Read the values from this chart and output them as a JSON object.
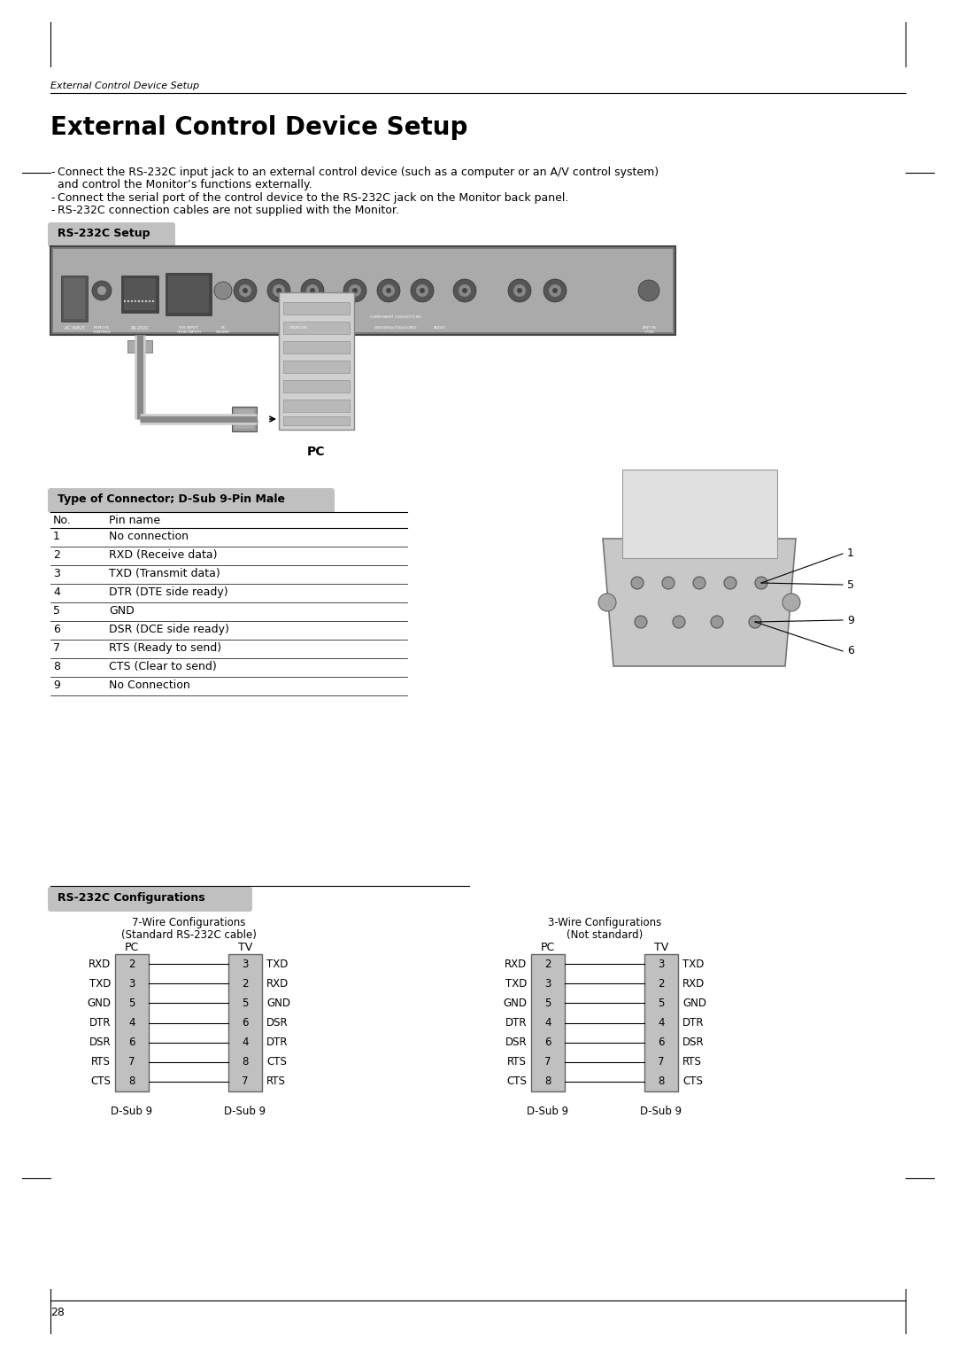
{
  "page_width": 10.8,
  "page_height": 15.25,
  "background_color": "#ffffff",
  "header_italic": "External Control Device Setup",
  "main_title": "External Control Device Setup",
  "bullet1_line1": "Connect the RS-232C input jack to an external control device (such as a computer or an A/V control system)",
  "bullet1_line2": "and control the Monitor’s functions externally.",
  "bullet2": "Connect the serial port of the control device to the RS-232C jack on the Monitor back panel.",
  "bullet3": "RS-232C connection cables are not supplied with the Monitor.",
  "section1_label": "RS-232C Setup",
  "section2_label": "Type of Connector; D-Sub 9-Pin Male",
  "section3_label": "RS-232C Configurations",
  "pin_table_rows": [
    [
      "1",
      "No connection"
    ],
    [
      "2",
      "RXD (Receive data)"
    ],
    [
      "3",
      "TXD (Transmit data)"
    ],
    [
      "4",
      "DTR (DTE side ready)"
    ],
    [
      "5",
      "GND"
    ],
    [
      "6",
      "DSR (DCE side ready)"
    ],
    [
      "7",
      "RTS (Ready to send)"
    ],
    [
      "8",
      "CTS (Clear to send)"
    ],
    [
      "9",
      "No Connection"
    ]
  ],
  "wire7_title1": "7-Wire Configurations",
  "wire7_title2": "(Standard RS-232C cable)",
  "wire3_title1": "3-Wire Configurations",
  "wire3_title2": "(Not standard)",
  "wire7_pc_pins": [
    "2",
    "3",
    "5",
    "4",
    "6",
    "7",
    "8"
  ],
  "wire7_pc_labels": [
    "RXD",
    "TXD",
    "GND",
    "DTR",
    "DSR",
    "RTS",
    "CTS"
  ],
  "wire7_tv_pins": [
    "3",
    "2",
    "5",
    "6",
    "4",
    "8",
    "7"
  ],
  "wire7_tv_labels": [
    "TXD",
    "RXD",
    "GND",
    "DSR",
    "DTR",
    "CTS",
    "RTS"
  ],
  "wire3_pc_pins": [
    "2",
    "3",
    "5",
    "4",
    "6",
    "7",
    "8"
  ],
  "wire3_pc_labels": [
    "RXD",
    "TXD",
    "GND",
    "DTR",
    "DSR",
    "RTS",
    "CTS"
  ],
  "wire3_tv_pins": [
    "3",
    "2",
    "5",
    "4",
    "6",
    "7",
    "8"
  ],
  "wire3_tv_labels": [
    "TXD",
    "RXD",
    "GND",
    "DTR",
    "DSR",
    "RTS",
    "CTS"
  ],
  "section_bg": "#c0c0c0",
  "page_number": "28"
}
